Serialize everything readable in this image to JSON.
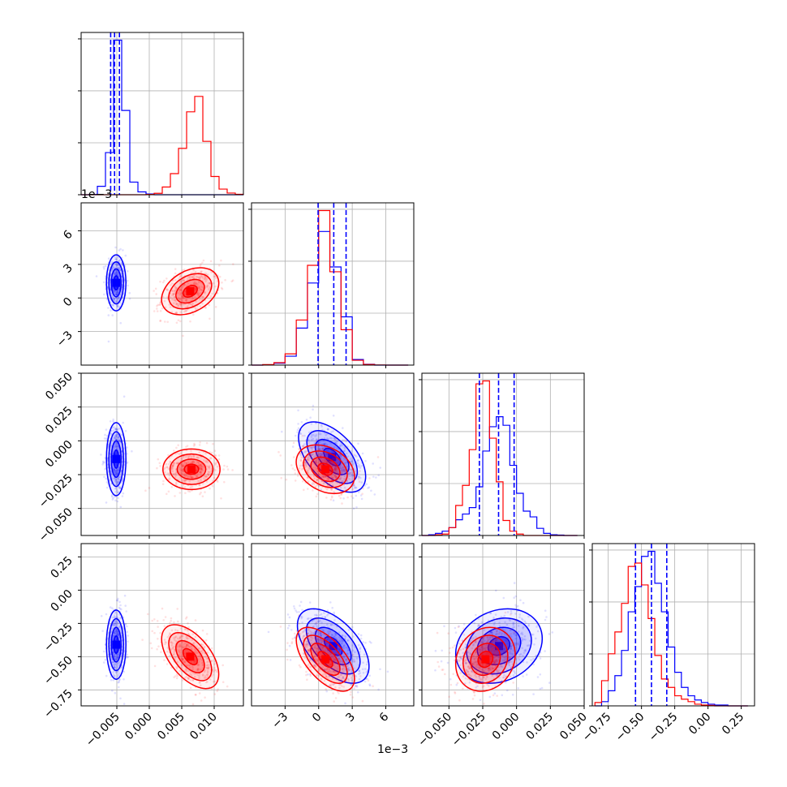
{
  "chart_data": {
    "type": "corner",
    "colors": {
      "blue": "#0000ff",
      "red": "#ff0000",
      "grid": "#b0b0b0"
    },
    "parameters": [
      {
        "xlim": [
          -0.0105,
          0.0145
        ],
        "ticks": [
          -0.005,
          0.0,
          0.005,
          0.01
        ],
        "tick_labels": [
          "−0.005",
          "0.000",
          "0.005",
          "0.010"
        ],
        "offset": ""
      },
      {
        "xlim": [
          -6.0,
          8.5
        ],
        "ticks": [
          -3,
          0,
          3,
          6
        ],
        "tick_labels": [
          "−3",
          "0",
          "3",
          "6"
        ],
        "offset": "1e−3"
      },
      {
        "xlim": [
          -0.07,
          0.05
        ],
        "ticks": [
          -0.05,
          -0.025,
          0.0,
          0.025,
          0.05
        ],
        "tick_labels": [
          "−0.050",
          "−0.025",
          "0.000",
          "0.025",
          "0.050"
        ],
        "offset": ""
      },
      {
        "xlim": [
          -0.87,
          0.35
        ],
        "ticks": [
          -0.75,
          -0.5,
          -0.25,
          0.0,
          0.25
        ],
        "tick_labels": [
          "−0.75",
          "−0.50",
          "−0.25",
          "0.00",
          "0.25"
        ],
        "offset": ""
      }
    ],
    "y_offset_label": "1e−3",
    "histograms": [
      {
        "bin_edges": [
          -0.0105,
          -0.00925,
          -0.008,
          -0.00675,
          -0.0055,
          -0.00425,
          -0.003,
          -0.00175,
          -0.0005,
          0.00075,
          0.002,
          0.00325,
          0.0045,
          0.00575,
          0.007,
          0.00825,
          0.0095,
          0.01075,
          0.012,
          0.01325,
          0.0145
        ],
        "blue": [
          0,
          2,
          60,
          300,
          1100,
          600,
          90,
          20,
          5,
          0,
          0,
          0,
          0,
          0,
          0,
          0,
          0,
          0,
          0,
          0
        ],
        "red": [
          0,
          0,
          0,
          0,
          0,
          0,
          0,
          0,
          2,
          10,
          55,
          150,
          330,
          590,
          700,
          380,
          130,
          40,
          12,
          3
        ],
        "quantiles_blue": [
          -0.00595,
          -0.00535,
          -0.0046
        ]
      },
      {
        "bin_edges": [
          -6.0,
          -5.0,
          -4.0,
          -3.0,
          -2.0,
          -1.0,
          0.0,
          1.0,
          2.0,
          3.0,
          4.0,
          5.0,
          6.0,
          7.0,
          8.0
        ],
        "blue": [
          0,
          2,
          12,
          55,
          230,
          510,
          830,
          610,
          300,
          35,
          5,
          0,
          0,
          0
        ],
        "red": [
          0,
          3,
          15,
          70,
          280,
          620,
          960,
          580,
          220,
          30,
          4,
          1,
          0,
          0
        ],
        "quantiles_blue": [
          -0.05,
          1.35,
          2.45
        ]
      },
      {
        "bin_edges": [
          -0.07,
          -0.065,
          -0.06,
          -0.055,
          -0.05,
          -0.045,
          -0.04,
          -0.035,
          -0.03,
          -0.025,
          -0.02,
          -0.015,
          -0.01,
          -0.005,
          0.0,
          0.005,
          0.01,
          0.015,
          0.02,
          0.025,
          0.03,
          0.035,
          0.04,
          0.045
        ],
        "blue": [
          0,
          5,
          15,
          30,
          55,
          110,
          150,
          195,
          340,
          590,
          760,
          830,
          770,
          490,
          295,
          170,
          130,
          50,
          15,
          5,
          3,
          0,
          0
        ],
        "red": [
          0,
          0,
          5,
          10,
          55,
          210,
          350,
          600,
          1060,
          1080,
          680,
          375,
          105,
          30,
          10,
          0,
          0,
          0,
          0,
          0,
          0,
          0,
          0
        ],
        "quantiles_blue": [
          -0.0275,
          -0.0133,
          -0.0018
        ]
      },
      {
        "bin_edges": [
          -0.85,
          -0.8,
          -0.75,
          -0.7,
          -0.65,
          -0.6,
          -0.55,
          -0.5,
          -0.45,
          -0.4,
          -0.35,
          -0.3,
          -0.25,
          -0.2,
          -0.15,
          -0.1,
          -0.05,
          0.0,
          0.05,
          0.1,
          0.15,
          0.2,
          0.25,
          0.3
        ],
        "blue": [
          0,
          25,
          90,
          180,
          330,
          560,
          710,
          890,
          920,
          730,
          560,
          350,
          200,
          110,
          60,
          35,
          20,
          10,
          5,
          5,
          0,
          0,
          0
        ],
        "red": [
          20,
          150,
          310,
          440,
          610,
          830,
          850,
          720,
          520,
          300,
          160,
          110,
          60,
          40,
          25,
          10,
          5,
          3,
          0,
          0,
          0,
          0,
          0
        ],
        "quantiles_blue": [
          -0.545,
          -0.425,
          -0.31
        ]
      }
    ],
    "pairs": [
      {
        "i": 1,
        "j": 0,
        "blue": {
          "mean": [
            -0.0051,
            1.35
          ],
          "sd": [
            0.00075,
            1.25
          ],
          "rho": 0.0,
          "n": 420
        },
        "red": {
          "mean": [
            0.0063,
            0.6
          ],
          "sd": [
            0.0022,
            1.05
          ],
          "rho": 0.35,
          "n": 420
        }
      },
      {
        "i": 2,
        "j": 0,
        "blue": {
          "mean": [
            -0.0051,
            -0.0135
          ],
          "sd": [
            0.00075,
            0.0135
          ],
          "rho": 0.0,
          "n": 420
        },
        "red": {
          "mean": [
            0.0065,
            -0.021
          ],
          "sd": [
            0.0022,
            0.0075
          ],
          "rho": 0.0,
          "n": 420
        }
      },
      {
        "i": 2,
        "j": 1,
        "blue": {
          "mean": [
            1.2,
            -0.012
          ],
          "sd": [
            1.5,
            0.013
          ],
          "rho": -0.55,
          "n": 420
        },
        "red": {
          "mean": [
            0.6,
            -0.021
          ],
          "sd": [
            1.3,
            0.009
          ],
          "rho": -0.3,
          "n": 420
        }
      },
      {
        "i": 3,
        "j": 0,
        "blue": {
          "mean": [
            -0.0051,
            -0.41
          ],
          "sd": [
            0.00075,
            0.13
          ],
          "rho": 0.0,
          "n": 420
        },
        "red": {
          "mean": [
            0.0063,
            -0.5
          ],
          "sd": [
            0.0022,
            0.12
          ],
          "rho": -0.55,
          "n": 420
        }
      },
      {
        "i": 3,
        "j": 1,
        "blue": {
          "mean": [
            1.3,
            -0.42
          ],
          "sd": [
            1.6,
            0.14
          ],
          "rho": -0.55,
          "n": 420
        },
        "red": {
          "mean": [
            0.6,
            -0.52
          ],
          "sd": [
            1.3,
            0.12
          ],
          "rho": -0.6,
          "n": 420
        }
      },
      {
        "i": 3,
        "j": 2,
        "blue": {
          "mean": [
            -0.013,
            -0.42
          ],
          "sd": [
            0.016,
            0.14
          ],
          "rho": 0.2,
          "n": 420
        },
        "red": {
          "mean": [
            -0.023,
            -0.52
          ],
          "sd": [
            0.011,
            0.12
          ],
          "rho": 0.15,
          "n": 420
        }
      }
    ]
  }
}
